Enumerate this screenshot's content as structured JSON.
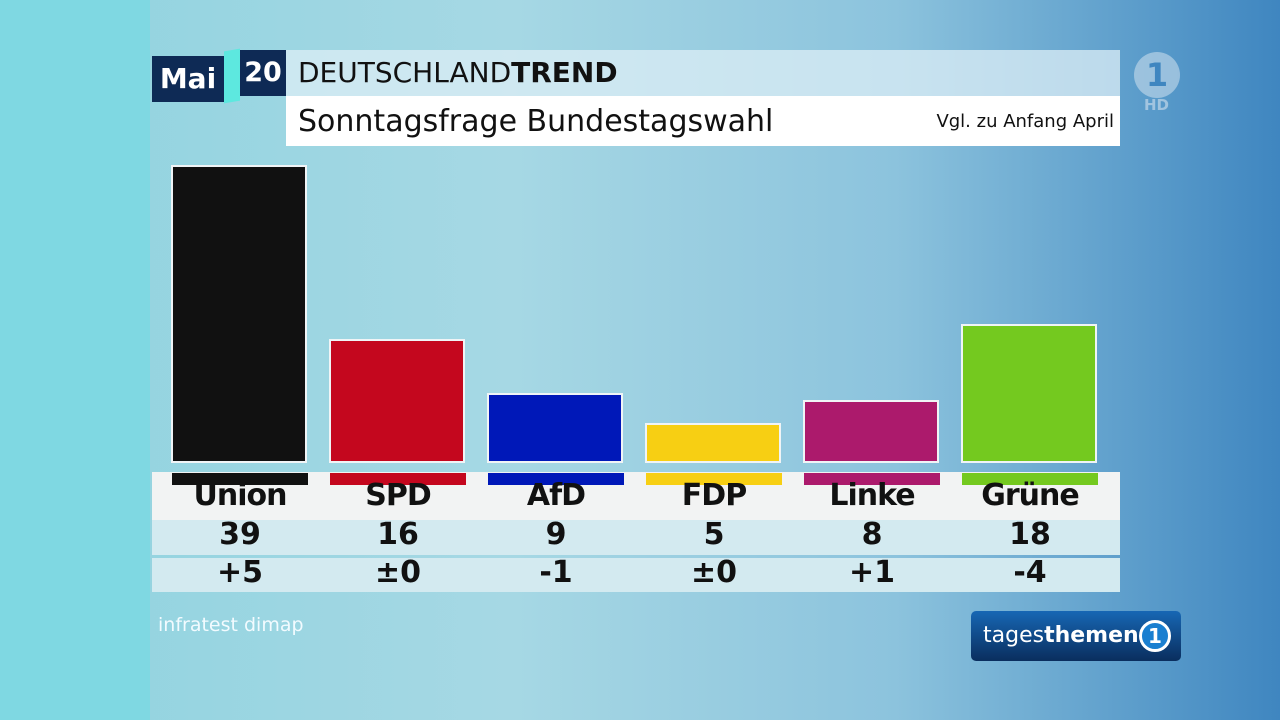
{
  "header": {
    "month": "Mai",
    "day": "20",
    "title_regular": "DEUTSCHLAND",
    "title_bold": "TREND",
    "subtitle": "Sonntagsfrage Bundestagswahl",
    "comparison": "Vgl. zu Anfang April"
  },
  "source": "infratest dimap",
  "logos": {
    "channel_hd": "HD",
    "program_regular": "tages",
    "program_bold": "themen",
    "channel_icon": "ard-one-icon"
  },
  "chart_data": {
    "type": "bar",
    "categories": [
      "Union",
      "SPD",
      "AfD",
      "FDP",
      "Linke",
      "Grüne"
    ],
    "values": [
      39,
      16,
      9,
      5,
      8,
      18
    ],
    "value_labels": [
      "39",
      "16",
      "9",
      "5",
      "8",
      "18"
    ],
    "changes": [
      "+5",
      "±0",
      "-1",
      "±0",
      "+1",
      "-4"
    ],
    "colors": [
      "#111111",
      "#c4071e",
      "#0018b8",
      "#f7cf13",
      "#ac1a6c",
      "#74c91f"
    ],
    "title": "Sonntagsfrage Bundestagswahl",
    "ylim": [
      0,
      40
    ],
    "grid": false
  }
}
